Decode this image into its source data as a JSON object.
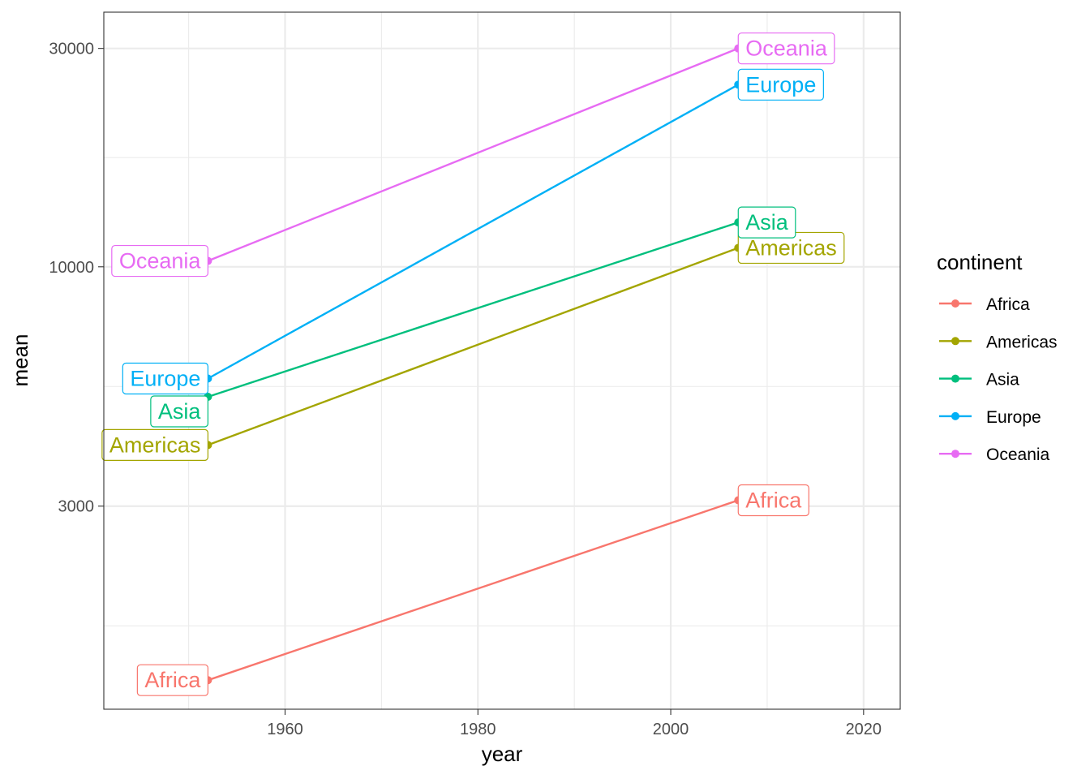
{
  "chart_data": {
    "type": "line",
    "xlabel": "year",
    "ylabel": "mean",
    "x_scale": "linear",
    "y_scale": "log10",
    "xlim": [
      1941.2,
      2023.8
    ],
    "ylim": [
      1080,
      36000
    ],
    "x_ticks": [
      1960,
      1980,
      2000,
      2020
    ],
    "x_tick_labels": [
      "1960",
      "1980",
      "2000",
      "2020"
    ],
    "y_ticks": [
      3000,
      10000,
      30000
    ],
    "y_tick_labels": [
      "3000",
      "10000",
      "30000"
    ],
    "grid": true,
    "legend": {
      "title": "continent",
      "position": "right"
    },
    "categories_x": [
      1952,
      2007
    ],
    "series": [
      {
        "name": "Africa",
        "color": "#F8766D",
        "x": [
          1952,
          2007
        ],
        "values": [
          1250,
          3090
        ]
      },
      {
        "name": "Americas",
        "color": "#A3A500",
        "x": [
          1952,
          2007
        ],
        "values": [
          4080,
          11000
        ]
      },
      {
        "name": "Asia",
        "color": "#00BF7D",
        "x": [
          1952,
          2007
        ],
        "values": [
          5200,
          12500
        ]
      },
      {
        "name": "Europe",
        "color": "#00B0F6",
        "x": [
          1952,
          2007
        ],
        "values": [
          5700,
          25000
        ]
      },
      {
        "name": "Oceania",
        "color": "#E76BF3",
        "x": [
          1952,
          2007
        ],
        "values": [
          10300,
          30000
        ]
      }
    ]
  }
}
